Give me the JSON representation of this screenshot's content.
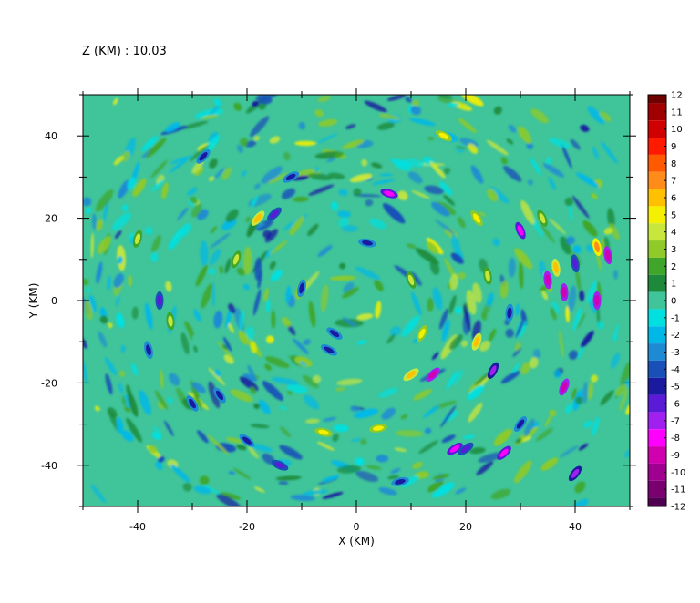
{
  "chart_data": {
    "type": "heatmap",
    "title": "Z (KM) : 10.03",
    "xlabel": "X (KM)",
    "ylabel": "Y (KM)",
    "xlim": [
      -50,
      50
    ],
    "ylim": [
      -50,
      50
    ],
    "x_ticks": [
      -40,
      -20,
      0,
      20,
      40
    ],
    "y_ticks": [
      -40,
      -20,
      0,
      20,
      40
    ],
    "colorbar": {
      "min": -12,
      "max": 12,
      "step": 1,
      "labels": [
        "12",
        "11",
        "10",
        "9",
        "8",
        "7",
        "6",
        "5",
        "4",
        "3",
        "2",
        "1",
        "0",
        "-1",
        "-2",
        "-3",
        "-4",
        "-5",
        "-6",
        "-7",
        "-8",
        "-9",
        "-10",
        "-11",
        "-12"
      ],
      "colors": [
        "#6e0000",
        "#a00000",
        "#d00000",
        "#ff1a00",
        "#ff5a00",
        "#ff8c1a",
        "#ffc000",
        "#f5f000",
        "#c8e63c",
        "#8fca28",
        "#3fa62a",
        "#1c8a3a",
        "#40c49a",
        "#00e0e0",
        "#00b8e8",
        "#1e8ad4",
        "#1850b8",
        "#1a1aa0",
        "#5a1ad8",
        "#a020f0",
        "#ff00ff",
        "#d000b0",
        "#a00090",
        "#7a0070",
        "#500050"
      ]
    },
    "background_value": 0,
    "features": [
      {
        "x": 35,
        "y": 5,
        "value": -9
      },
      {
        "x": 36.5,
        "y": 8,
        "value": 6
      },
      {
        "x": 38,
        "y": 2,
        "value": -9
      },
      {
        "x": 44,
        "y": 0,
        "value": -9
      },
      {
        "x": 46,
        "y": 11,
        "value": -9
      },
      {
        "x": 44,
        "y": 13,
        "value": 7
      },
      {
        "x": 40,
        "y": 9,
        "value": -6
      },
      {
        "x": 6,
        "y": 26,
        "value": -8
      },
      {
        "x": 14,
        "y": -18,
        "value": -9
      },
      {
        "x": 10,
        "y": -18,
        "value": 6
      },
      {
        "x": 18,
        "y": -36,
        "value": -8
      },
      {
        "x": 27,
        "y": -37,
        "value": -8
      },
      {
        "x": 20,
        "y": -36,
        "value": -6
      },
      {
        "x": 38,
        "y": -21,
        "value": -9
      },
      {
        "x": 30,
        "y": 17,
        "value": -8
      },
      {
        "x": 25,
        "y": -17,
        "value": -7
      },
      {
        "x": 40,
        "y": -42,
        "value": -7
      },
      {
        "x": 22,
        "y": -10,
        "value": 6
      },
      {
        "x": -18,
        "y": 20,
        "value": 6
      },
      {
        "x": -15,
        "y": 21,
        "value": -6
      },
      {
        "x": -10,
        "y": 3,
        "value": -5
      },
      {
        "x": 12,
        "y": -8,
        "value": 5
      },
      {
        "x": -5,
        "y": -12,
        "value": -5
      },
      {
        "x": -25,
        "y": -23,
        "value": -5
      },
      {
        "x": -30,
        "y": -25,
        "value": -5
      },
      {
        "x": -22,
        "y": 10,
        "value": 4
      },
      {
        "x": -36,
        "y": 0,
        "value": -6
      },
      {
        "x": -34,
        "y": -5,
        "value": 4
      },
      {
        "x": -6,
        "y": -32,
        "value": 5
      },
      {
        "x": 4,
        "y": -31,
        "value": 5
      },
      {
        "x": 16,
        "y": 40,
        "value": 5
      },
      {
        "x": 22,
        "y": 20,
        "value": 5
      },
      {
        "x": -4,
        "y": -8,
        "value": -5
      },
      {
        "x": 2,
        "y": 14,
        "value": -5
      },
      {
        "x": -12,
        "y": 30,
        "value": -5
      },
      {
        "x": 24,
        "y": 6,
        "value": 4
      },
      {
        "x": 10,
        "y": 5,
        "value": 4
      },
      {
        "x": 28,
        "y": -3,
        "value": -5
      },
      {
        "x": -40,
        "y": 15,
        "value": 4
      },
      {
        "x": -38,
        "y": -12,
        "value": -5
      },
      {
        "x": 30,
        "y": -30,
        "value": -5
      },
      {
        "x": -20,
        "y": -34,
        "value": -5
      },
      {
        "x": 8,
        "y": -44,
        "value": -5
      },
      {
        "x": -14,
        "y": -40,
        "value": -6
      },
      {
        "x": 34,
        "y": 20,
        "value": 4
      },
      {
        "x": -28,
        "y": 35,
        "value": -5
      }
    ]
  }
}
